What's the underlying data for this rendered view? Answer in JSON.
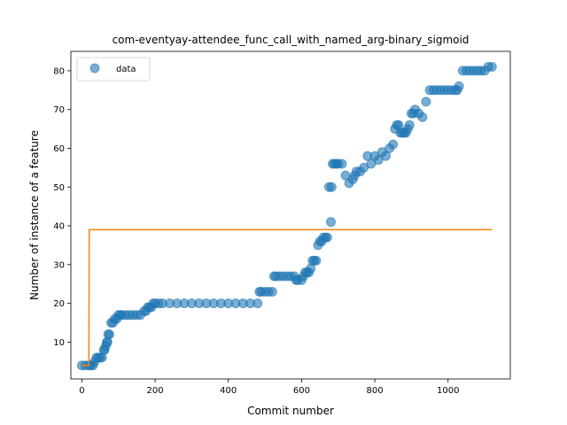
{
  "chart_data": {
    "type": "scatter",
    "title": "com-eventyay-attendee_func_call_with_named_arg-binary_sigmoid",
    "xlabel": "Commit number",
    "ylabel": "Number of instance of a feature",
    "xlim": [
      -30,
      1170
    ],
    "ylim": [
      0.5,
      85
    ],
    "xticks": [
      0,
      200,
      400,
      600,
      800,
      1000
    ],
    "yticks": [
      10,
      20,
      30,
      40,
      50,
      60,
      70,
      80
    ],
    "legend": {
      "position": "top-left",
      "entries": [
        "data"
      ]
    },
    "colors": {
      "data": "#1f77b4",
      "fit": "#ff7f0e"
    },
    "series": [
      {
        "name": "data",
        "kind": "scatter",
        "x": [
          0,
          10,
          20,
          25,
          30,
          35,
          40,
          45,
          50,
          55,
          60,
          62,
          65,
          68,
          70,
          72,
          75,
          80,
          85,
          90,
          95,
          100,
          105,
          110,
          120,
          130,
          140,
          150,
          160,
          170,
          175,
          180,
          185,
          190,
          195,
          200,
          210,
          220,
          240,
          260,
          280,
          300,
          320,
          340,
          360,
          380,
          400,
          420,
          440,
          460,
          480,
          485,
          490,
          500,
          510,
          520,
          525,
          530,
          540,
          550,
          560,
          570,
          580,
          585,
          590,
          600,
          605,
          610,
          615,
          620,
          625,
          630,
          635,
          640,
          645,
          650,
          655,
          660,
          665,
          670,
          675,
          680,
          682,
          685,
          690,
          695,
          700,
          710,
          720,
          730,
          740,
          745,
          750,
          760,
          770,
          780,
          790,
          800,
          810,
          820,
          830,
          840,
          850,
          855,
          860,
          865,
          870,
          875,
          880,
          885,
          890,
          895,
          900,
          905,
          910,
          920,
          930,
          940,
          950,
          960,
          970,
          980,
          990,
          1000,
          1010,
          1020,
          1025,
          1030,
          1040,
          1050,
          1060,
          1070,
          1080,
          1090,
          1100,
          1110,
          1120
        ],
        "y": [
          4,
          4,
          4,
          4,
          4,
          5,
          6,
          6,
          6,
          6,
          8,
          8,
          9,
          10,
          10,
          12,
          12,
          15,
          15,
          16,
          16,
          17,
          17,
          17,
          17,
          17,
          17,
          17,
          17,
          18,
          18,
          19,
          19,
          19,
          20,
          20,
          20,
          20,
          20,
          20,
          20,
          20,
          20,
          20,
          20,
          20,
          20,
          20,
          20,
          20,
          20,
          23,
          23,
          23,
          23,
          23,
          27,
          27,
          27,
          27,
          27,
          27,
          27,
          26,
          26,
          26,
          27,
          28,
          28,
          28,
          29,
          31,
          31,
          31,
          35,
          36,
          36,
          37,
          37,
          37,
          50,
          41,
          50,
          56,
          56,
          56,
          56,
          56,
          53,
          51,
          52,
          53,
          54,
          54,
          55,
          58,
          56,
          58,
          57,
          59,
          58,
          60,
          61,
          65,
          66,
          66,
          64,
          64,
          64,
          64,
          65,
          66,
          69,
          69,
          70,
          69,
          68,
          72,
          75,
          75,
          75,
          75,
          75,
          75,
          75,
          75,
          75,
          76,
          80,
          80,
          80,
          80,
          80,
          80,
          80,
          81,
          81
        ]
      },
      {
        "name": "",
        "kind": "step-line",
        "x": [
          0,
          19,
          20,
          1120
        ],
        "y": [
          4,
          4,
          39,
          39
        ]
      }
    ]
  }
}
